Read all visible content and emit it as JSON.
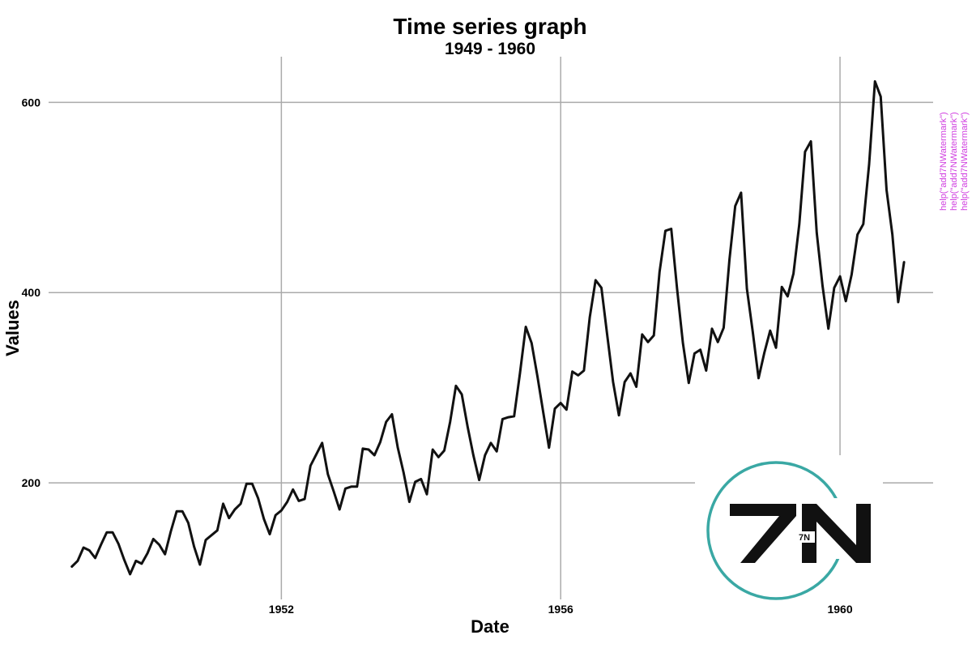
{
  "chart_data": {
    "type": "line",
    "title": "Time series graph",
    "subtitle": "1949 - 1960",
    "xlabel": "Date",
    "ylabel": "Values",
    "x_start": "1949-01",
    "x_frequency": "monthly",
    "x_ticks": [
      "1952",
      "1956",
      "1960"
    ],
    "y_ticks": [
      "200",
      "400",
      "600"
    ],
    "xlim": [
      "1948-09",
      "1961-05"
    ],
    "ylim": [
      90,
      660
    ],
    "grid": true,
    "series": [
      {
        "color": "#111111",
        "values": [
          112,
          118,
          132,
          129,
          121,
          135,
          148,
          148,
          136,
          119,
          104,
          118,
          115,
          126,
          141,
          135,
          125,
          149,
          170,
          170,
          158,
          133,
          114,
          140,
          145,
          150,
          178,
          163,
          172,
          178,
          199,
          199,
          184,
          162,
          146,
          166,
          171,
          180,
          193,
          181,
          183,
          218,
          230,
          242,
          209,
          191,
          172,
          194,
          196,
          196,
          236,
          235,
          229,
          243,
          264,
          272,
          237,
          211,
          180,
          201,
          204,
          188,
          235,
          227,
          234,
          264,
          302,
          293,
          259,
          229,
          203,
          229,
          242,
          233,
          267,
          269,
          270,
          315,
          364,
          347,
          312,
          274,
          237,
          278,
          284,
          277,
          317,
          313,
          318,
          374,
          413,
          405,
          355,
          306,
          271,
          306,
          315,
          301,
          356,
          348,
          355,
          422,
          465,
          467,
          404,
          347,
          305,
          336,
          340,
          318,
          362,
          348,
          363,
          435,
          491,
          505,
          404,
          359,
          310,
          337,
          360,
          342,
          406,
          396,
          420,
          472,
          548,
          559,
          463,
          407,
          362,
          405,
          417,
          391,
          419,
          461,
          472,
          535,
          622,
          606,
          508,
          461,
          390,
          432
        ]
      }
    ]
  },
  "watermark": {
    "lines": [
      "help(\"add7NWatermark\")",
      "help(\"add7NWatermark\")",
      "help(\"add7NWatermark\")"
    ],
    "logo_text": "7N",
    "logo_small_text": "7N",
    "ring_color": "#3aa8a4",
    "text_color": "#d040e0"
  }
}
